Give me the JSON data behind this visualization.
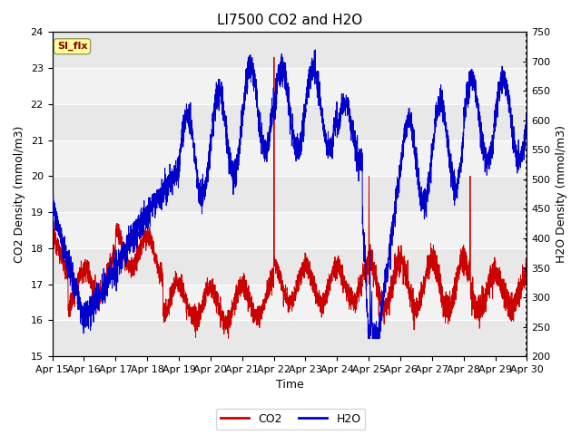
{
  "title": "LI7500 CO2 and H2O",
  "xlabel": "Time",
  "ylabel_left": "CO2 Density (mmol/m3)",
  "ylabel_right": "H2O Density (mmol/m3)",
  "ylim_left": [
    15.0,
    24.0
  ],
  "ylim_right": [
    200,
    750
  ],
  "xtick_labels": [
    "Apr 15",
    "Apr 16",
    "Apr 17",
    "Apr 18",
    "Apr 19",
    "Apr 20",
    "Apr 21",
    "Apr 22",
    "Apr 23",
    "Apr 24",
    "Apr 25",
    "Apr 26",
    "Apr 27",
    "Apr 28",
    "Apr 29",
    "Apr 30"
  ],
  "yticks_left": [
    15.0,
    16.0,
    17.0,
    18.0,
    19.0,
    20.0,
    21.0,
    22.0,
    23.0,
    24.0
  ],
  "yticks_right": [
    200,
    250,
    300,
    350,
    400,
    450,
    500,
    550,
    600,
    650,
    700,
    750
  ],
  "annotation_text": "SI_flx",
  "annotation_color": "#8B0000",
  "annotation_bg": "#FFFF99",
  "annotation_edge": "#999966",
  "bg_bands": [
    "#E8E8E8",
    "#F2F2F2"
  ],
  "co2_color": "#CC0000",
  "h2o_color": "#0000CC",
  "legend_co2": "CO2",
  "legend_h2o": "H2O",
  "title_fontsize": 11,
  "axis_label_fontsize": 9,
  "tick_fontsize": 8,
  "legend_fontsize": 9,
  "grid_color": "#FFFFFF",
  "n_days": 15
}
